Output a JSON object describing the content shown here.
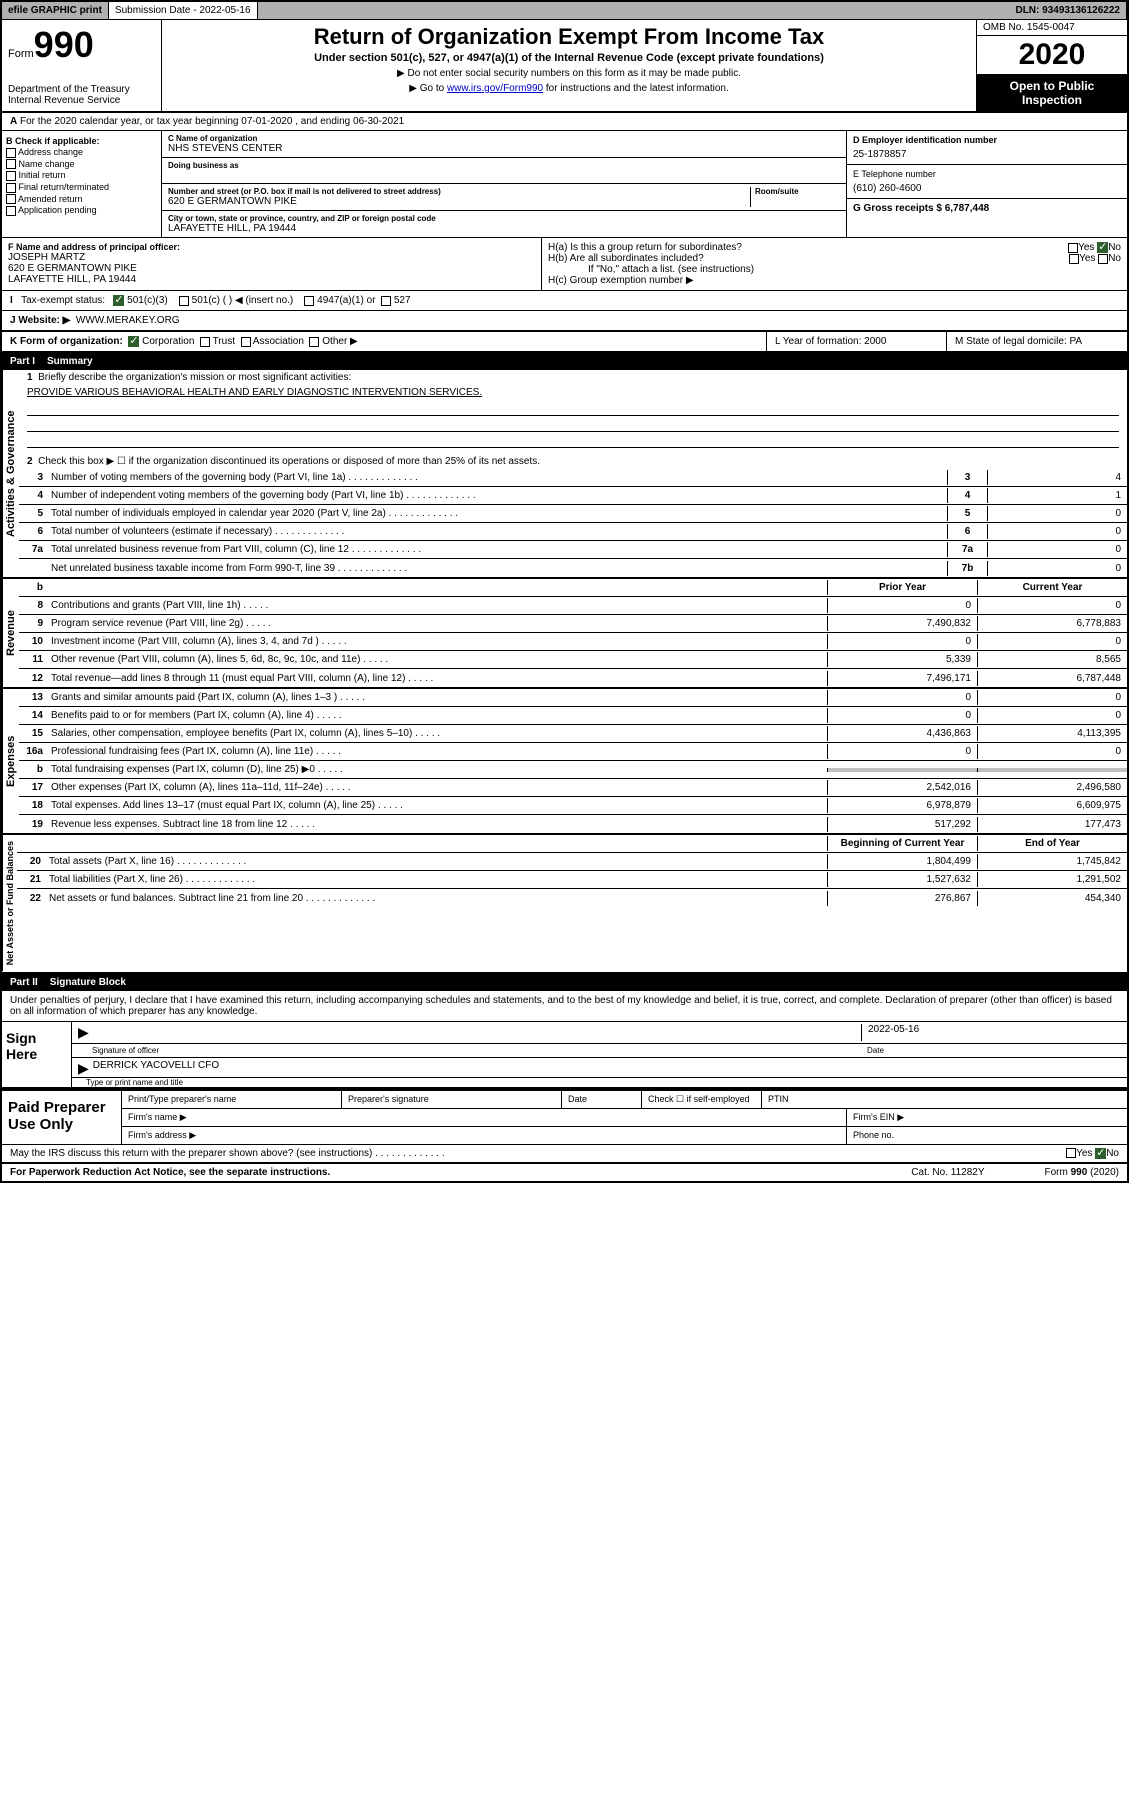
{
  "top": {
    "efile": "efile GRAPHIC print",
    "submission_label": "Submission Date - 2022-05-16",
    "dln": "DLN: 93493136126222"
  },
  "header": {
    "form_label": "Form",
    "form_num": "990",
    "title": "Return of Organization Exempt From Income Tax",
    "subtitle": "Under section 501(c), 527, or 4947(a)(1) of the Internal Revenue Code (except private foundations)",
    "note1": "▶ Do not enter social security numbers on this form as it may be made public.",
    "note2_pre": "▶ Go to ",
    "note2_link": "www.irs.gov/Form990",
    "note2_post": " for instructions and the latest information.",
    "dept": "Department of the Treasury\nInternal Revenue Service",
    "omb": "OMB No. 1545-0047",
    "year": "2020",
    "inspection": "Open to Public Inspection"
  },
  "period": "For the 2020 calendar year, or tax year beginning 07-01-2020   , and ending 06-30-2021",
  "section_b": {
    "title": "B Check if applicable:",
    "items": [
      "Address change",
      "Name change",
      "Initial return",
      "Final return/terminated",
      "Amended return",
      "Application pending"
    ]
  },
  "section_c": {
    "name_label": "C Name of organization",
    "name": "NHS STEVENS CENTER",
    "dba_label": "Doing business as",
    "addr_label": "Number and street (or P.O. box if mail is not delivered to street address)",
    "room_label": "Room/suite",
    "addr": "620 E GERMANTOWN PIKE",
    "city_label": "City or town, state or province, country, and ZIP or foreign postal code",
    "city": "LAFAYETTE HILL, PA  19444"
  },
  "section_d": {
    "ein_label": "D Employer identification number",
    "ein": "25-1878857",
    "phone_label": "E Telephone number",
    "phone": "(610) 260-4600",
    "gross_label": "G Gross receipts $ 6,787,448"
  },
  "section_f": {
    "label": "F  Name and address of principal officer:",
    "name": "JOSEPH MARTZ",
    "addr1": "620 E GERMANTOWN PIKE",
    "addr2": "LAFAYETTE HILL, PA  19444"
  },
  "section_h": {
    "ha": "H(a)  Is this a group return for subordinates?",
    "hb": "H(b)  Are all subordinates included?",
    "hb_note": "If \"No,\" attach a list. (see instructions)",
    "hc": "H(c)  Group exemption number ▶"
  },
  "tax_status": {
    "label": "Tax-exempt status:",
    "opt1": "501(c)(3)",
    "opt2": "501(c) (  ) ◀ (insert no.)",
    "opt3": "4947(a)(1) or",
    "opt4": "527"
  },
  "website": {
    "label": "J   Website: ▶",
    "value": "WWW.MERAKEY.ORG"
  },
  "klm": {
    "k": "K Form of organization:",
    "k_opts": [
      "Corporation",
      "Trust",
      "Association",
      "Other ▶"
    ],
    "l": "L Year of formation: 2000",
    "m": "M State of legal domicile: PA"
  },
  "part1": {
    "num": "Part I",
    "title": "Summary"
  },
  "summary": {
    "line1_label": "Briefly describe the organization's mission or most significant activities:",
    "line1_text": "PROVIDE VARIOUS BEHAVIORAL HEALTH AND EARLY DIAGNOSTIC INTERVENTION SERVICES.",
    "line2": "Check this box ▶ ☐  if the organization discontinued its operations or disposed of more than 25% of its net assets.",
    "lines_3_7": [
      {
        "num": "3",
        "text": "Number of voting members of the governing body (Part VI, line 1a)",
        "box": "3",
        "val": "4"
      },
      {
        "num": "4",
        "text": "Number of independent voting members of the governing body (Part VI, line 1b)",
        "box": "4",
        "val": "1"
      },
      {
        "num": "5",
        "text": "Total number of individuals employed in calendar year 2020 (Part V, line 2a)",
        "box": "5",
        "val": "0"
      },
      {
        "num": "6",
        "text": "Total number of volunteers (estimate if necessary)",
        "box": "6",
        "val": "0"
      },
      {
        "num": "7a",
        "text": "Total unrelated business revenue from Part VIII, column (C), line 12",
        "box": "7a",
        "val": "0"
      },
      {
        "num": "",
        "text": "Net unrelated business taxable income from Form 990-T, line 39",
        "box": "7b",
        "val": "0"
      }
    ],
    "col_prior": "Prior Year",
    "col_current": "Current Year",
    "revenue": [
      {
        "num": "8",
        "text": "Contributions and grants (Part VIII, line 1h)",
        "prior": "0",
        "curr": "0"
      },
      {
        "num": "9",
        "text": "Program service revenue (Part VIII, line 2g)",
        "prior": "7,490,832",
        "curr": "6,778,883"
      },
      {
        "num": "10",
        "text": "Investment income (Part VIII, column (A), lines 3, 4, and 7d )",
        "prior": "0",
        "curr": "0"
      },
      {
        "num": "11",
        "text": "Other revenue (Part VIII, column (A), lines 5, 6d, 8c, 9c, 10c, and 11e)",
        "prior": "5,339",
        "curr": "8,565"
      },
      {
        "num": "12",
        "text": "Total revenue—add lines 8 through 11 (must equal Part VIII, column (A), line 12)",
        "prior": "7,496,171",
        "curr": "6,787,448"
      }
    ],
    "expenses": [
      {
        "num": "13",
        "text": "Grants and similar amounts paid (Part IX, column (A), lines 1–3 )",
        "prior": "0",
        "curr": "0"
      },
      {
        "num": "14",
        "text": "Benefits paid to or for members (Part IX, column (A), line 4)",
        "prior": "0",
        "curr": "0"
      },
      {
        "num": "15",
        "text": "Salaries, other compensation, employee benefits (Part IX, column (A), lines 5–10)",
        "prior": "4,436,863",
        "curr": "4,113,395"
      },
      {
        "num": "16a",
        "text": "Professional fundraising fees (Part IX, column (A), line 11e)",
        "prior": "0",
        "curr": "0"
      },
      {
        "num": "b",
        "text": "Total fundraising expenses (Part IX, column (D), line 25) ▶0",
        "prior": "",
        "curr": "",
        "shaded": true
      },
      {
        "num": "17",
        "text": "Other expenses (Part IX, column (A), lines 11a–11d, 11f–24e)",
        "prior": "2,542,016",
        "curr": "2,496,580"
      },
      {
        "num": "18",
        "text": "Total expenses. Add lines 13–17 (must equal Part IX, column (A), line 25)",
        "prior": "6,978,879",
        "curr": "6,609,975"
      },
      {
        "num": "19",
        "text": "Revenue less expenses. Subtract line 18 from line 12",
        "prior": "517,292",
        "curr": "177,473"
      }
    ],
    "col_begin": "Beginning of Current Year",
    "col_end": "End of Year",
    "netassets": [
      {
        "num": "20",
        "text": "Total assets (Part X, line 16)",
        "prior": "1,804,499",
        "curr": "1,745,842"
      },
      {
        "num": "21",
        "text": "Total liabilities (Part X, line 26)",
        "prior": "1,527,632",
        "curr": "1,291,502"
      },
      {
        "num": "22",
        "text": "Net assets or fund balances. Subtract line 21 from line 20",
        "prior": "276,867",
        "curr": "454,340"
      }
    ]
  },
  "vert_labels": {
    "gov": "Activities & Governance",
    "rev": "Revenue",
    "exp": "Expenses",
    "net": "Net Assets or Fund Balances"
  },
  "part2": {
    "num": "Part II",
    "title": "Signature Block"
  },
  "sig": {
    "perjury": "Under penalties of perjury, I declare that I have examined this return, including accompanying schedules and statements, and to the best of my knowledge and belief, it is true, correct, and complete. Declaration of preparer (other than officer) is based on all information of which preparer has any knowledge.",
    "sign_here": "Sign Here",
    "sig_officer": "Signature of officer",
    "date": "Date",
    "date_val": "2022-05-16",
    "name_title": "DERRICK YACOVELLI  CFO",
    "type_label": "Type or print name and title"
  },
  "preparer": {
    "label": "Paid Preparer Use Only",
    "print_name": "Print/Type preparer's name",
    "prep_sig": "Preparer's signature",
    "date": "Date",
    "check": "Check ☐ if self-employed",
    "ptin": "PTIN",
    "firm_name": "Firm's name   ▶",
    "firm_ein": "Firm's EIN ▶",
    "firm_addr": "Firm's address ▶",
    "phone": "Phone no."
  },
  "footer": {
    "discuss": "May the IRS discuss this return with the preparer shown above? (see instructions)",
    "paperwork": "For Paperwork Reduction Act Notice, see the separate instructions.",
    "cat": "Cat. No. 11282Y",
    "form": "Form 990 (2020)"
  }
}
